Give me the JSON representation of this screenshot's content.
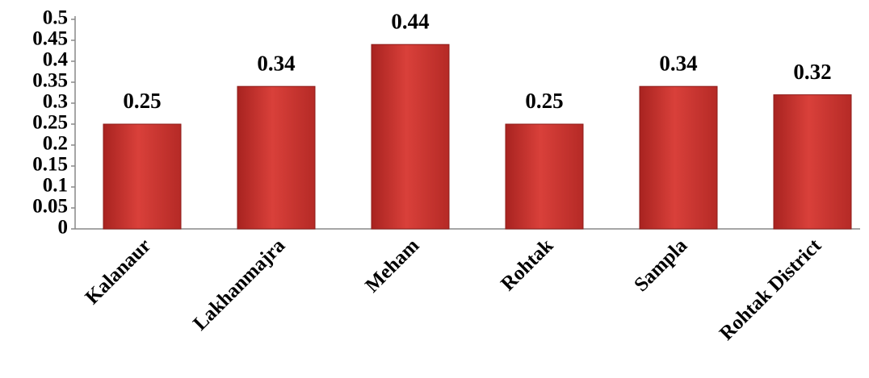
{
  "chart_data": {
    "type": "bar",
    "categories": [
      "Kalanaur",
      "Lakhanmajra",
      "Meham",
      "Rohtak",
      "Sampla",
      "Rohtak District"
    ],
    "values": [
      0.25,
      0.34,
      0.44,
      0.25,
      0.34,
      0.32
    ],
    "color": "#c0302c",
    "ylim": [
      0,
      0.5
    ],
    "yticks": [
      0,
      0.05,
      0.1,
      0.15,
      0.2,
      0.25,
      0.3,
      0.35,
      0.4,
      0.45,
      0.5
    ]
  }
}
